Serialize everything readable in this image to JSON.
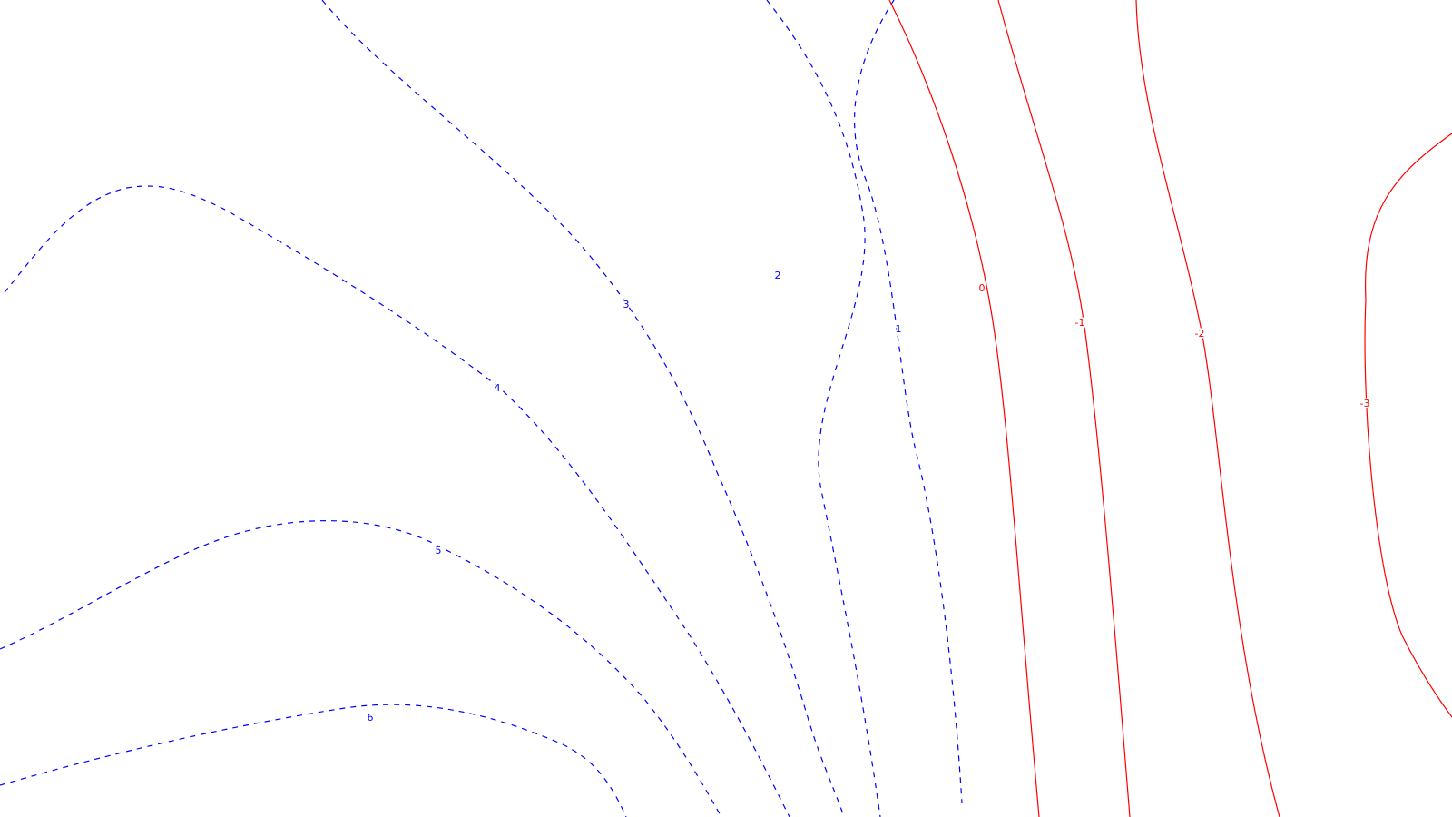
{
  "chart_data": {
    "type": "contour",
    "title": "",
    "xlabel": "",
    "ylabel": "",
    "grid": false,
    "colors": {
      "positive": "#0000ff",
      "negative": "#ff0000",
      "background": "#ffffff"
    },
    "positive_style": "dashed",
    "negative_style": "solid",
    "contours": [
      {
        "level": 6,
        "label": "6",
        "sign": "positive"
      },
      {
        "level": 5,
        "label": "5",
        "sign": "positive"
      },
      {
        "level": 4,
        "label": "4",
        "sign": "positive"
      },
      {
        "level": 3,
        "label": "3",
        "sign": "positive"
      },
      {
        "level": 2,
        "label": "2",
        "sign": "positive"
      },
      {
        "level": 1,
        "label": "1",
        "sign": "positive"
      },
      {
        "level": 0,
        "label": "0",
        "sign": "negative"
      },
      {
        "level": -1,
        "label": "-1",
        "sign": "negative"
      },
      {
        "level": -2,
        "label": "-2",
        "sign": "negative"
      },
      {
        "level": -3,
        "label": "-3",
        "sign": "negative"
      }
    ]
  }
}
